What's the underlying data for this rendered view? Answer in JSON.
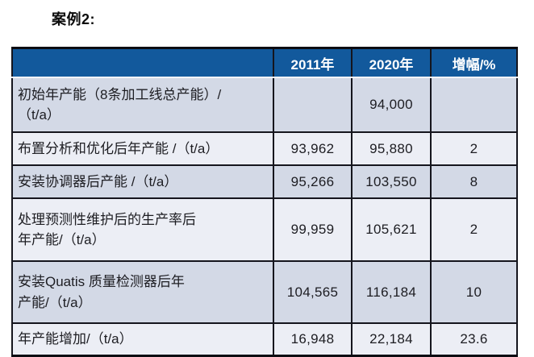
{
  "page": {
    "title": "案例2:"
  },
  "table": {
    "columns": [
      "",
      "2011年",
      "2020年",
      "增幅/%"
    ],
    "colors": {
      "header_bg": "#12599C",
      "header_text": "#FFFFFF",
      "row_odd_bg": "#D3D9E6",
      "row_even_bg": "#ECEEF5",
      "border": "#15151D"
    },
    "rows": [
      {
        "label": "初始年产能（8条加工线总产能）/\n（t/a）",
        "y2011": "",
        "y2020": "94,000",
        "growth": ""
      },
      {
        "label": "布置分析和优化后年产能 /（t/a）",
        "y2011": "93,962",
        "y2020": "95,880",
        "growth": "2"
      },
      {
        "label": "安装协调器后产能 /（t/a）",
        "y2011": "95,266",
        "y2020": "103,550",
        "growth": "8"
      },
      {
        "label": "处理预测性维护后的生产率后\n年产能/（t/a）",
        "y2011": "99,959",
        "y2020": "105,621",
        "growth": "2"
      },
      {
        "label": "安装Quatis 质量检测器后年\n产能/（t/a）",
        "y2011": "104,565",
        "y2020": "116,184",
        "growth": "10"
      },
      {
        "label": "年产能增加/（t/a）",
        "y2011": "16,948",
        "y2020": "22,184",
        "growth": "23.6"
      }
    ]
  }
}
